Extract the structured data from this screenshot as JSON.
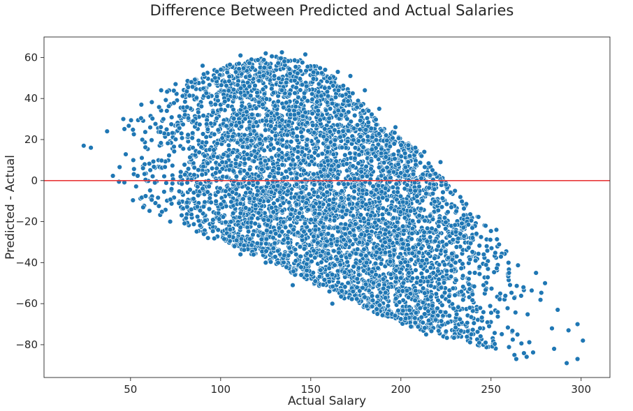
{
  "chart_data": {
    "type": "scatter",
    "title": "Difference Between Predicted and Actual Salaries",
    "xlabel": "Actual Salary",
    "ylabel": "Predicted - Actual",
    "xlim": [
      2,
      316
    ],
    "ylim": [
      -96,
      70
    ],
    "x_ticks": [
      50,
      100,
      150,
      200,
      250,
      300
    ],
    "y_ticks": [
      60,
      40,
      20,
      0,
      -20,
      -40,
      -60,
      -80
    ],
    "grid": false,
    "legend": "none",
    "reference_line": {
      "y": 0,
      "color": "#e8393a"
    },
    "point_color": "#1f77b4",
    "point_edge_color": "#ffffff",
    "series": [
      {
        "envelope": [
          {
            "x": 18,
            "y_min": 8,
            "y_max": 10
          },
          {
            "x": 25,
            "y_min": 0,
            "y_max": 16
          },
          {
            "x": 35,
            "y_min": -6,
            "y_max": 24
          },
          {
            "x": 50,
            "y_min": -12,
            "y_max": 32
          },
          {
            "x": 70,
            "y_min": -19,
            "y_max": 44
          },
          {
            "x": 90,
            "y_min": -26,
            "y_max": 52
          },
          {
            "x": 110,
            "y_min": -33,
            "y_max": 58
          },
          {
            "x": 130,
            "y_min": -41,
            "y_max": 61
          },
          {
            "x": 150,
            "y_min": -50,
            "y_max": 58
          },
          {
            "x": 170,
            "y_min": -58,
            "y_max": 46
          },
          {
            "x": 190,
            "y_min": -66,
            "y_max": 28
          },
          {
            "x": 210,
            "y_min": -73,
            "y_max": 14
          },
          {
            "x": 230,
            "y_min": -78,
            "y_max": -5
          },
          {
            "x": 250,
            "y_min": -82,
            "y_max": -24
          },
          {
            "x": 270,
            "y_min": -86,
            "y_max": -46
          },
          {
            "x": 285,
            "y_min": -88,
            "y_max": -58
          },
          {
            "x": 301,
            "y_min": -80,
            "y_max": -70
          }
        ],
        "outliers": [
          [
            111,
            61
          ],
          [
            125,
            62
          ],
          [
            134,
            62.5
          ],
          [
            147,
            61.5
          ],
          [
            158,
            54
          ],
          [
            165,
            53
          ],
          [
            172,
            51
          ],
          [
            180,
            44
          ],
          [
            188,
            35
          ],
          [
            197,
            26
          ],
          [
            208,
            16
          ],
          [
            213,
            14
          ],
          [
            222,
            9
          ],
          [
            225,
            -2
          ],
          [
            230,
            -5
          ],
          [
            233,
            -8
          ],
          [
            247,
            -22
          ],
          [
            253,
            -24
          ],
          [
            260,
            -45
          ],
          [
            268,
            -52
          ],
          [
            275,
            -45
          ],
          [
            280,
            -50
          ],
          [
            287,
            -63
          ],
          [
            293,
            -73
          ],
          [
            298,
            -70
          ],
          [
            301,
            -78
          ],
          [
            298,
            -87
          ],
          [
            292,
            -89
          ],
          [
            263,
            -85
          ],
          [
            264,
            -87
          ],
          [
            247,
            -79
          ],
          [
            214,
            -75
          ],
          [
            187,
            -65
          ],
          [
            162,
            -60
          ],
          [
            140,
            -51
          ],
          [
            125,
            -40
          ],
          [
            111,
            -36
          ],
          [
            93,
            -28
          ],
          [
            72,
            -20
          ],
          [
            90,
            56
          ],
          [
            75,
            47
          ],
          [
            67,
            44
          ],
          [
            56,
            37
          ],
          [
            46,
            30
          ],
          [
            37,
            24
          ],
          [
            28,
            16
          ],
          [
            24,
            17
          ],
          [
            228,
            -13
          ],
          [
            246,
            -36
          ]
        ]
      }
    ]
  }
}
